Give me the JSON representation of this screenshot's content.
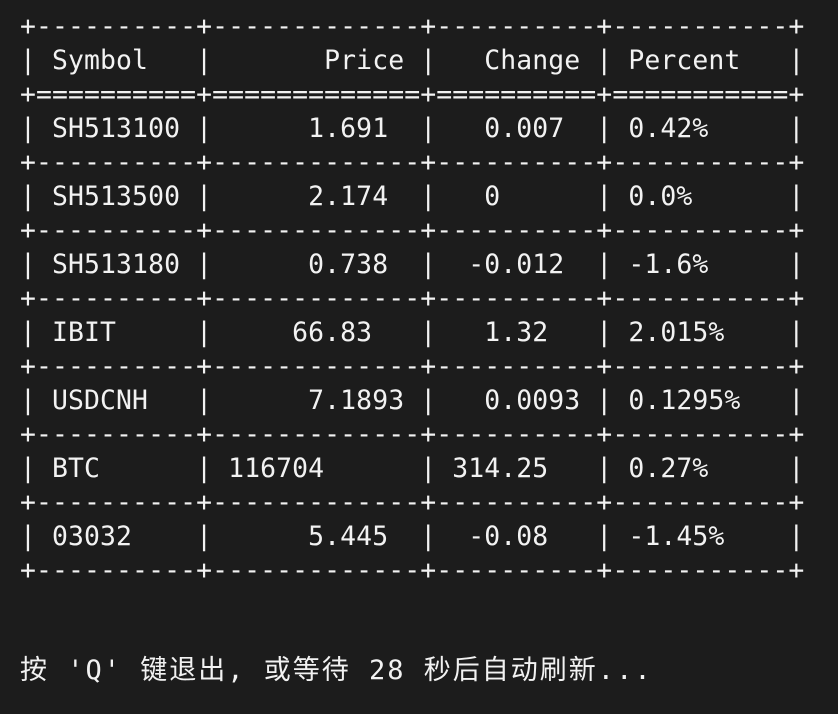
{
  "table": {
    "border_line": "+----------+-------------+----------+-----------+",
    "header_sep": "+==========+=============+==========+===========+",
    "header": "| Symbol   |       Price |   Change | Percent   |",
    "rows": [
      "| SH513100 |      1.691  |   0.007  | 0.42%     |",
      "| SH513500 |      2.174  |   0      | 0.0%      |",
      "| SH513180 |      0.738  |  -0.012  | -1.6%     |",
      "| IBIT     |     66.83   |   1.32   | 2.015%    |",
      "| USDCNH   |      7.1893 |   0.0093 | 0.1295%   |",
      "| BTC      | 116704      | 314.25   | 0.27%     |",
      "| 03032    |      5.445  |  -0.08   | -1.45%    |"
    ]
  },
  "status_text": "按 'Q' 键退出, 或等待 28 秒后自动刷新..."
}
